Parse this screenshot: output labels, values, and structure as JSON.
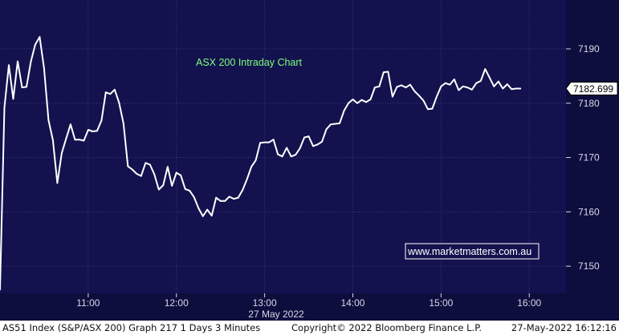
{
  "colors": {
    "plot_background": "#13124e",
    "axis_background": "#0d0d3e",
    "grid": "#3a3a78",
    "line": "#ffffff",
    "title_text": "#7dff7d",
    "tick_text": "#d8d8e8",
    "footer_background": "#ffffff",
    "footer_text": "#111111",
    "watermark_border": "#ffffff"
  },
  "footer": {
    "left": "AS51 Index (S&P/ASX 200) Graph 217  1 Days  3 Minutes",
    "middle": "Copyright© 2022 Bloomberg Finance L.P.",
    "right": "27-May-2022 16:12:16"
  },
  "watermark": {
    "text": "www.marketmatters.com.au"
  },
  "chart_data": {
    "type": "line",
    "title": "ASX 200 Intraday Chart",
    "xlabel": "27 May 2022",
    "ylabel": "",
    "x_range_minutes": [
      600,
      985
    ],
    "ylim": [
      7145,
      7199
    ],
    "x_ticks": [
      {
        "label": "11:00",
        "minute": 660
      },
      {
        "label": "12:00",
        "minute": 720
      },
      {
        "label": "13:00",
        "minute": 780
      },
      {
        "label": "14:00",
        "minute": 840
      },
      {
        "label": "15:00",
        "minute": 900
      },
      {
        "label": "16:00",
        "minute": 960
      }
    ],
    "y_ticks": [
      7150,
      7160,
      7170,
      7180,
      7190
    ],
    "last_value_label": "7182.699",
    "last_value": 7182.699,
    "grid": true,
    "series": [
      {
        "values": [
          [
            600,
            7145.7
          ],
          [
            603,
            7179.2
          ],
          [
            606,
            7187.0
          ],
          [
            609,
            7180.8
          ],
          [
            612,
            7187.7
          ],
          [
            615,
            7182.9
          ],
          [
            618,
            7183.0
          ],
          [
            621,
            7187.7
          ],
          [
            624,
            7190.8
          ],
          [
            627,
            7192.2
          ],
          [
            630,
            7186.4
          ],
          [
            633,
            7176.9
          ],
          [
            636,
            7173.2
          ],
          [
            639,
            7165.3
          ],
          [
            642,
            7170.8
          ],
          [
            645,
            7173.5
          ],
          [
            648,
            7176.1
          ],
          [
            651,
            7173.3
          ],
          [
            654,
            7173.3
          ],
          [
            657,
            7173.1
          ],
          [
            660,
            7175.1
          ],
          [
            663,
            7174.8
          ],
          [
            666,
            7174.9
          ],
          [
            669,
            7176.8
          ],
          [
            672,
            7182.0
          ],
          [
            675,
            7181.7
          ],
          [
            678,
            7182.5
          ],
          [
            681,
            7180.1
          ],
          [
            684,
            7176.3
          ],
          [
            687,
            7168.4
          ],
          [
            690,
            7167.8
          ],
          [
            693,
            7167.0
          ],
          [
            696,
            7166.6
          ],
          [
            699,
            7169.0
          ],
          [
            702,
            7168.7
          ],
          [
            705,
            7166.9
          ],
          [
            708,
            7164.1
          ],
          [
            711,
            7164.9
          ],
          [
            714,
            7168.3
          ],
          [
            717,
            7164.8
          ],
          [
            720,
            7167.2
          ],
          [
            723,
            7166.7
          ],
          [
            726,
            7164.2
          ],
          [
            729,
            7163.9
          ],
          [
            732,
            7162.7
          ],
          [
            735,
            7160.7
          ],
          [
            738,
            7159.2
          ],
          [
            741,
            7160.4
          ],
          [
            744,
            7159.3
          ],
          [
            747,
            7162.6
          ],
          [
            750,
            7162.0
          ],
          [
            753,
            7162.0
          ],
          [
            756,
            7162.8
          ],
          [
            759,
            7162.4
          ],
          [
            762,
            7162.6
          ],
          [
            765,
            7164.0
          ],
          [
            768,
            7166.0
          ],
          [
            771,
            7168.3
          ],
          [
            774,
            7169.5
          ],
          [
            777,
            7172.7
          ],
          [
            780,
            7172.8
          ],
          [
            783,
            7172.8
          ],
          [
            786,
            7173.3
          ],
          [
            789,
            7170.6
          ],
          [
            792,
            7170.2
          ],
          [
            795,
            7171.8
          ],
          [
            798,
            7170.2
          ],
          [
            801,
            7170.5
          ],
          [
            804,
            7171.7
          ],
          [
            807,
            7173.7
          ],
          [
            810,
            7173.9
          ],
          [
            813,
            7172.1
          ],
          [
            816,
            7172.4
          ],
          [
            819,
            7172.9
          ],
          [
            822,
            7175.2
          ],
          [
            825,
            7176.1
          ],
          [
            828,
            7176.2
          ],
          [
            831,
            7176.3
          ],
          [
            834,
            7178.6
          ],
          [
            837,
            7180.0
          ],
          [
            840,
            7180.7
          ],
          [
            843,
            7180.0
          ],
          [
            846,
            7180.6
          ],
          [
            849,
            7180.2
          ],
          [
            852,
            7180.7
          ],
          [
            855,
            7182.9
          ],
          [
            858,
            7183.1
          ],
          [
            861,
            7185.7
          ],
          [
            864,
            7185.8
          ],
          [
            867,
            7181.2
          ],
          [
            870,
            7183.0
          ],
          [
            873,
            7183.3
          ],
          [
            876,
            7182.9
          ],
          [
            879,
            7183.4
          ],
          [
            882,
            7182.2
          ],
          [
            885,
            7181.4
          ],
          [
            888,
            7180.5
          ],
          [
            891,
            7178.9
          ],
          [
            894,
            7179.0
          ],
          [
            897,
            7181.2
          ],
          [
            900,
            7183.1
          ],
          [
            903,
            7183.7
          ],
          [
            906,
            7183.4
          ],
          [
            909,
            7184.4
          ],
          [
            912,
            7182.4
          ],
          [
            915,
            7183.1
          ],
          [
            918,
            7182.9
          ],
          [
            921,
            7182.5
          ],
          [
            924,
            7183.7
          ],
          [
            927,
            7184.1
          ],
          [
            930,
            7186.3
          ],
          [
            933,
            7184.7
          ],
          [
            936,
            7183.1
          ],
          [
            939,
            7184.0
          ],
          [
            942,
            7182.7
          ],
          [
            945,
            7183.5
          ],
          [
            948,
            7182.6
          ],
          [
            951,
            7182.7
          ],
          [
            954,
            7182.7
          ]
        ]
      }
    ]
  }
}
